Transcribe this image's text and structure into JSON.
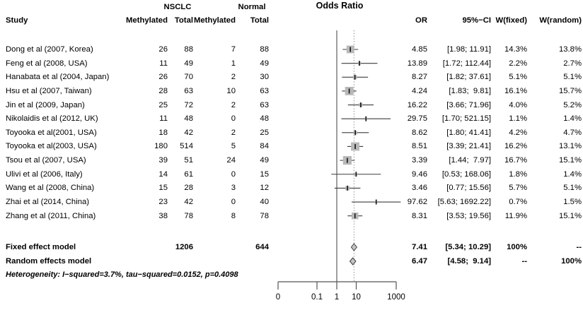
{
  "title": "Odds Ratio",
  "table": {
    "headers": {
      "study": "Study",
      "group1": "NSCLC",
      "group2": "Normal",
      "methylated1": "Methylated",
      "total1": "Total",
      "methylated2": "Methylated",
      "total2": "Total",
      "or": "OR",
      "ci": "95%−CI",
      "w_fixed": "W(fixed)",
      "w_random": "W(random)"
    },
    "heterogeneity": "Heterogeneity: I−squared=3.7%, tau−squared=0.0152, p=0.4098"
  },
  "chart_data": {
    "type": "forest",
    "title": "Odds Ratio",
    "x_scale": "log",
    "x_ticks": [
      "0",
      "0.1",
      "1",
      "10",
      "1000"
    ],
    "reference_value": 1,
    "pooled_line_value": 7.41,
    "studies": [
      {
        "name": "Dong et al (2007, Korea)",
        "nsclc_methylated": "26",
        "nsclc_total": "88",
        "normal_methylated": "7",
        "normal_total": "88",
        "or": 4.85,
        "ci_lo": 1.98,
        "ci_hi": 11.91,
        "or_display": "4.85",
        "ci_display": "[1.98; 11.91]",
        "w_fixed": "14.3%",
        "w_random": "13.8%",
        "w_fixed_num": 14.3
      },
      {
        "name": "Feng et al (2008, USA)",
        "nsclc_methylated": "11",
        "nsclc_total": "49",
        "normal_methylated": "1",
        "normal_total": "49",
        "or": 13.89,
        "ci_lo": 1.72,
        "ci_hi": 112.44,
        "or_display": "13.89",
        "ci_display": "[1.72; 112.44]",
        "w_fixed": "2.2%",
        "w_random": "2.7%",
        "w_fixed_num": 2.2
      },
      {
        "name": "Hanabata et al (2004, Japan)",
        "nsclc_methylated": "26",
        "nsclc_total": "70",
        "normal_methylated": "2",
        "normal_total": "30",
        "or": 8.27,
        "ci_lo": 1.82,
        "ci_hi": 37.61,
        "or_display": "8.27",
        "ci_display": "[1.82; 37.61]",
        "w_fixed": "5.1%",
        "w_random": "5.1%",
        "w_fixed_num": 5.1
      },
      {
        "name": "Hsu et al (2007, Taiwan)",
        "nsclc_methylated": "28",
        "nsclc_total": "63",
        "normal_methylated": "10",
        "normal_total": "63",
        "or": 4.24,
        "ci_lo": 1.83,
        "ci_hi": 9.81,
        "or_display": "4.24",
        "ci_display": "[1.83;  9.81]",
        "w_fixed": "16.1%",
        "w_random": "15.7%",
        "w_fixed_num": 16.1
      },
      {
        "name": "Jin et al (2009, Japan)",
        "nsclc_methylated": "25",
        "nsclc_total": "72",
        "normal_methylated": "2",
        "normal_total": "63",
        "or": 16.22,
        "ci_lo": 3.66,
        "ci_hi": 71.96,
        "or_display": "16.22",
        "ci_display": "[3.66; 71.96]",
        "w_fixed": "4.0%",
        "w_random": "5.2%",
        "w_fixed_num": 4.0
      },
      {
        "name": "Nikolaidis et al (2012, UK)",
        "nsclc_methylated": "11",
        "nsclc_total": "48",
        "normal_methylated": "0",
        "normal_total": "48",
        "or": 29.75,
        "ci_lo": 1.7,
        "ci_hi": 521.15,
        "or_display": "29.75",
        "ci_display": "[1.70; 521.15]",
        "w_fixed": "1.1%",
        "w_random": "1.4%",
        "w_fixed_num": 1.1
      },
      {
        "name": "Toyooka et al(2001, USA)",
        "nsclc_methylated": "18",
        "nsclc_total": "42",
        "normal_methylated": "2",
        "normal_total": "25",
        "or": 8.62,
        "ci_lo": 1.8,
        "ci_hi": 41.41,
        "or_display": "8.62",
        "ci_display": "[1.80; 41.41]",
        "w_fixed": "4.2%",
        "w_random": "4.7%",
        "w_fixed_num": 4.2
      },
      {
        "name": "Toyooka et al(2003, USA)",
        "nsclc_methylated": "180",
        "nsclc_total": "514",
        "normal_methylated": "5",
        "normal_total": "84",
        "or": 8.51,
        "ci_lo": 3.39,
        "ci_hi": 21.41,
        "or_display": "8.51",
        "ci_display": "[3.39; 21.41]",
        "w_fixed": "16.2%",
        "w_random": "13.1%",
        "w_fixed_num": 16.2
      },
      {
        "name": "Tsou et al (2007, USA)",
        "nsclc_methylated": "39",
        "nsclc_total": "51",
        "normal_methylated": "24",
        "normal_total": "49",
        "or": 3.39,
        "ci_lo": 1.44,
        "ci_hi": 7.97,
        "or_display": "3.39",
        "ci_display": "[1.44;  7.97]",
        "w_fixed": "16.7%",
        "w_random": "15.1%",
        "w_fixed_num": 16.7
      },
      {
        "name": "Ulivi et al (2006, Italy)",
        "nsclc_methylated": "14",
        "nsclc_total": "61",
        "normal_methylated": "0",
        "normal_total": "15",
        "or": 9.46,
        "ci_lo": 0.53,
        "ci_hi": 168.06,
        "or_display": "9.46",
        "ci_display": "[0.53; 168.06]",
        "w_fixed": "1.8%",
        "w_random": "1.4%",
        "w_fixed_num": 1.8
      },
      {
        "name": "Wang et al (2008, China)",
        "nsclc_methylated": "15",
        "nsclc_total": "28",
        "normal_methylated": "3",
        "normal_total": "12",
        "or": 3.46,
        "ci_lo": 0.77,
        "ci_hi": 15.56,
        "or_display": "3.46",
        "ci_display": "[0.77; 15.56]",
        "w_fixed": "5.7%",
        "w_random": "5.1%",
        "w_fixed_num": 5.7
      },
      {
        "name": "Zhai et al (2014, China)",
        "nsclc_methylated": "23",
        "nsclc_total": "42",
        "normal_methylated": "0",
        "normal_total": "40",
        "or": 97.62,
        "ci_lo": 5.63,
        "ci_hi": 1692.22,
        "or_display": "97.62",
        "ci_display": "[5.63; 1692.22]",
        "w_fixed": "0.7%",
        "w_random": "1.5%",
        "w_fixed_num": 0.7
      },
      {
        "name": "Zhang et al (2011, China)",
        "nsclc_methylated": "38",
        "nsclc_total": "78",
        "normal_methylated": "8",
        "normal_total": "78",
        "or": 8.31,
        "ci_lo": 3.53,
        "ci_hi": 19.56,
        "or_display": "8.31",
        "ci_display": "[3.53; 19.56]",
        "w_fixed": "11.9%",
        "w_random": "15.1%",
        "w_fixed_num": 11.9
      }
    ],
    "summary": [
      {
        "label": "Fixed effect model",
        "nsclc_total": "1206",
        "normal_total": "644",
        "or": 7.41,
        "ci_lo": 5.34,
        "ci_hi": 10.29,
        "or_display": "7.41",
        "ci_display": "[5.34; 10.29]",
        "w_fixed": "100%",
        "w_random": "--"
      },
      {
        "label": "Random effects model",
        "nsclc_total": "",
        "normal_total": "",
        "or": 6.47,
        "ci_lo": 4.58,
        "ci_hi": 9.14,
        "or_display": "6.47",
        "ci_display": "[4.58;  9.14]",
        "w_fixed": "--",
        "w_random": "100%"
      }
    ],
    "colors": {
      "square_fill": "#b8b8b8",
      "diamond_fill": "#c4c4c4",
      "diamond_stroke": "#3d3d3d",
      "ci_line": "#3c3c3c",
      "point_estimate": "#111111",
      "reference_line": "#757575",
      "dotted_line": "#8a8a8a",
      "axis": "#555555",
      "text": "#000000"
    }
  }
}
